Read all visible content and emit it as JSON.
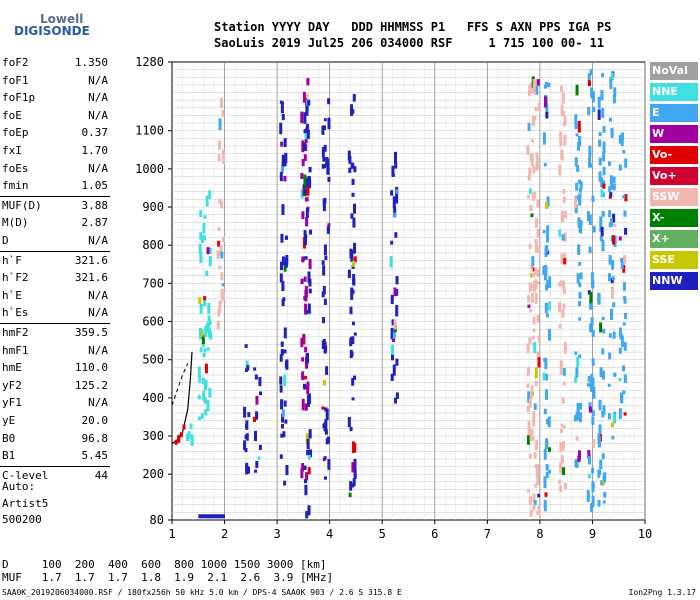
{
  "logo": {
    "line1": "Lowell",
    "line2": "DIGISONDE"
  },
  "header": {
    "row1": "Station YYYY DAY   DDD HHMMSS P1   FFS S AXN PPS IGA PS",
    "row2": "SaoLuis 2019 Jul25 206 034000 RSF     1 715 100 00- 11"
  },
  "params": [
    {
      "name": "foF2",
      "value": "1.350"
    },
    {
      "name": "foF1",
      "value": "N/A"
    },
    {
      "name": "foF1p",
      "value": "N/A"
    },
    {
      "name": "foE",
      "value": "N/A"
    },
    {
      "name": "foEp",
      "value": "0.37"
    },
    {
      "name": "fxI",
      "value": "1.70"
    },
    {
      "name": "foEs",
      "value": "N/A"
    },
    {
      "name": "fmin",
      "value": "1.05"
    },
    {
      "name": "MUF(D)",
      "value": "3.88"
    },
    {
      "name": "M(D)",
      "value": "2.87"
    },
    {
      "name": "D",
      "value": "N/A"
    },
    {
      "name": "h`F",
      "value": "321.6"
    },
    {
      "name": "h`F2",
      "value": "321.6"
    },
    {
      "name": "h`E",
      "value": "N/A"
    },
    {
      "name": "h`Es",
      "value": "N/A"
    },
    {
      "name": "hmF2",
      "value": "359.5"
    },
    {
      "name": "hmF1",
      "value": "N/A"
    },
    {
      "name": "hmE",
      "value": "110.0"
    },
    {
      "name": "yF2",
      "value": "125.2"
    },
    {
      "name": "yF1",
      "value": "N/A"
    },
    {
      "name": "yE",
      "value": "20.0"
    },
    {
      "name": "B0",
      "value": "96.8"
    },
    {
      "name": "B1",
      "value": "5.45"
    },
    {
      "name": "C-level",
      "value": "44"
    }
  ],
  "auto": {
    "line1": "Auto:",
    "line2": "Artist5",
    "line3": "500200"
  },
  "legend": [
    {
      "label": "NoVal",
      "color": "#a0a0a0"
    },
    {
      "label": "NNE",
      "color": "#40e0e0"
    },
    {
      "label": "E",
      "color": "#40a8f0"
    },
    {
      "label": "W",
      "color": "#a000a0"
    },
    {
      "label": "Vo-",
      "color": "#e00000"
    },
    {
      "label": "Vo+",
      "color": "#d00030"
    },
    {
      "label": "SSW",
      "color": "#f0b8b0"
    },
    {
      "label": "X-",
      "color": "#008000"
    },
    {
      "label": "X+",
      "color": "#60b060"
    },
    {
      "label": "SSE",
      "color": "#c8c800"
    },
    {
      "label": "NNW",
      "color": "#2020c0"
    }
  ],
  "muf_table": {
    "row1": "D     100  200  400  600  800 1000 1500 3000 [km]",
    "row2": "MUF   1.7  1.7  1.7  1.8  1.9  2.1  2.6  3.9 [MHz]"
  },
  "footer": {
    "left": "SAA0K_2019206034000.RSF / 180fx256h 50 kHz 5.0 km / DPS-4 SAA0K 903 / 2.6 S 315.8 E",
    "right": "Ion2Png 1.3.17"
  },
  "chart_data": {
    "type": "scatter",
    "xlim": [
      1,
      10
    ],
    "ylim": [
      80,
      1280
    ],
    "x_ticks": [
      1,
      2,
      3,
      4,
      5,
      6,
      7,
      8,
      9,
      10
    ],
    "y_ticks": [
      80,
      200,
      300,
      400,
      500,
      600,
      700,
      800,
      900,
      1000,
      1100,
      1280
    ],
    "grid": true,
    "columns": [
      {
        "x": 1.15,
        "color": "#40e0e0",
        "ymin": 280,
        "ymax": 330
      },
      {
        "x": 1.3,
        "color": "#40e0e0",
        "ymin": 300,
        "ymax": 380
      },
      {
        "x": 1.55,
        "color": "#40e0e0",
        "ymin": 330,
        "ymax": 900
      },
      {
        "x": 1.65,
        "color": "#40e0e0",
        "ymin": 350,
        "ymax": 950
      },
      {
        "x": 1.9,
        "color": "#f0b8b0",
        "ymin": 600,
        "ymax": 1200
      },
      {
        "x": 2.4,
        "color": "#2020c0",
        "ymin": 220,
        "ymax": 560
      },
      {
        "x": 2.6,
        "color": "#2020c0",
        "ymin": 210,
        "ymax": 480
      },
      {
        "x": 3.1,
        "color": "#2020c0",
        "ymin": 180,
        "ymax": 1200
      },
      {
        "x": 3.5,
        "color": "#a000a0",
        "ymin": 200,
        "ymax": 1250
      },
      {
        "x": 3.55,
        "color": "#2020c0",
        "ymin": 100,
        "ymax": 1240
      },
      {
        "x": 3.9,
        "color": "#2020c0",
        "ymin": 180,
        "ymax": 1200
      },
      {
        "x": 4.4,
        "color": "#2020c0",
        "ymin": 150,
        "ymax": 1240
      },
      {
        "x": 5.2,
        "color": "#2020c0",
        "ymin": 400,
        "ymax": 1100
      },
      {
        "x": 7.8,
        "color": "#f0b8b0",
        "ymin": 100,
        "ymax": 1270
      },
      {
        "x": 7.9,
        "color": "#f0b8b0",
        "ymin": 100,
        "ymax": 1270
      },
      {
        "x": 8.1,
        "color": "#40a8f0",
        "ymin": 130,
        "ymax": 1250
      },
      {
        "x": 8.4,
        "color": "#f0b8b0",
        "ymin": 150,
        "ymax": 1250
      },
      {
        "x": 8.7,
        "color": "#40a8f0",
        "ymin": 200,
        "ymax": 1250
      },
      {
        "x": 8.95,
        "color": "#40a8f0",
        "ymin": 100,
        "ymax": 1270
      },
      {
        "x": 9.15,
        "color": "#40a8f0",
        "ymin": 100,
        "ymax": 1270
      },
      {
        "x": 9.35,
        "color": "#40a8f0",
        "ymin": 300,
        "ymax": 1260
      },
      {
        "x": 9.55,
        "color": "#40a8f0",
        "ymin": 350,
        "ymax": 1100
      }
    ],
    "trace_curve": [
      [
        1.0,
        280
      ],
      [
        1.1,
        290
      ],
      [
        1.2,
        310
      ],
      [
        1.3,
        370
      ],
      [
        1.35,
        450
      ],
      [
        1.38,
        520
      ]
    ]
  }
}
